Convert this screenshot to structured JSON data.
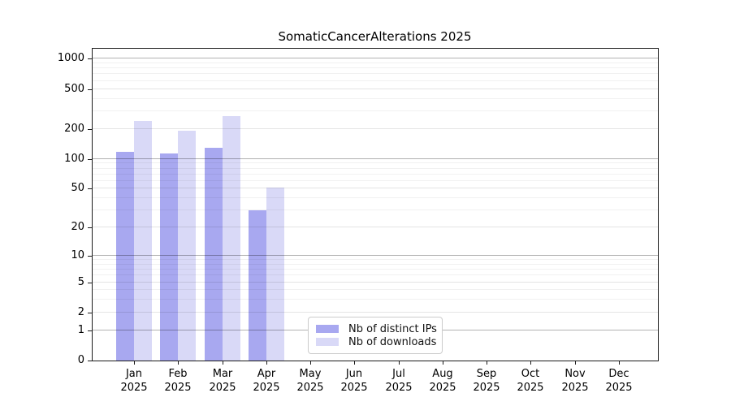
{
  "chart_data": {
    "type": "bar",
    "title": "SomaticCancerAlterations 2025",
    "x_categories": [
      "Jan",
      "Feb",
      "Mar",
      "Apr",
      "May",
      "Jun",
      "Jul",
      "Aug",
      "Sep",
      "Oct",
      "Nov",
      "Dec"
    ],
    "x_year_line": "2025",
    "series": [
      {
        "name": "Nb of distinct IPs",
        "color": "#a8a8f0",
        "values": [
          118,
          113,
          130,
          30,
          0,
          0,
          0,
          0,
          0,
          0,
          0,
          0
        ]
      },
      {
        "name": "Nb of downloads",
        "color": "#d9d9f7",
        "values": [
          241,
          192,
          270,
          51,
          0,
          0,
          0,
          0,
          0,
          0,
          0,
          0
        ]
      }
    ],
    "y_ticks": [
      0,
      1,
      2,
      5,
      10,
      20,
      50,
      100,
      200,
      500,
      1000
    ],
    "y_minor_gridlines": [
      3,
      4,
      6,
      7,
      8,
      9,
      30,
      40,
      60,
      70,
      80,
      90,
      300,
      400,
      600,
      700,
      800,
      900
    ],
    "y_major_gridlines": [
      1,
      10,
      100,
      1000
    ],
    "y_mid_gridlines": [
      2,
      5,
      20,
      50,
      200,
      500
    ],
    "y_scale": "log10(1+y)",
    "ylim": [
      0,
      1250
    ],
    "grid": true,
    "legend_position": "lower-center",
    "colors": {
      "axis": "#1a1a1a",
      "background": "#ffffff"
    }
  }
}
